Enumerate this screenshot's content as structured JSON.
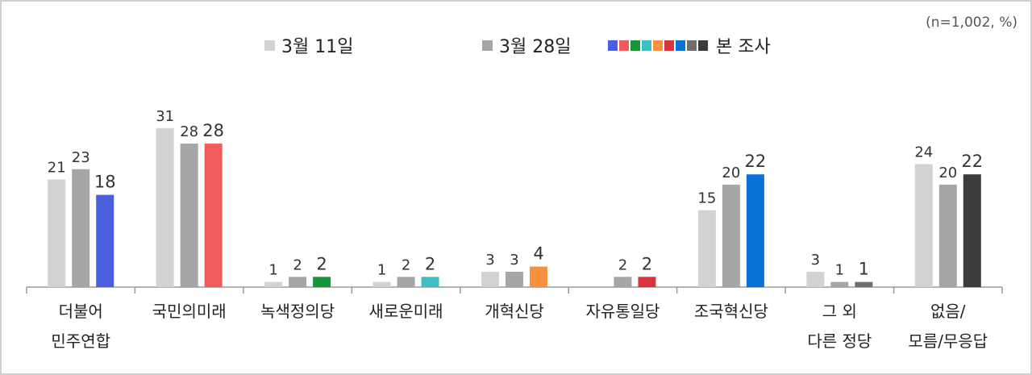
{
  "note": "(n=1,002, %)",
  "legend": {
    "s1": {
      "label": "3월 11일",
      "color": "#d3d3d3"
    },
    "s2": {
      "label": "3월 28일",
      "color": "#a6a6a6"
    },
    "s3": {
      "label": "본 조사",
      "colors": [
        "#4a5fe0",
        "#f25b5b",
        "#16963a",
        "#3fbfc4",
        "#f7903b",
        "#d9343e",
        "#0a72d6",
        "#6f6f6f",
        "#3b3b3b"
      ]
    }
  },
  "chart_data": {
    "type": "bar",
    "categories": [
      [
        "더불어",
        "민주연합"
      ],
      [
        "국민의미래"
      ],
      [
        "녹색정의당"
      ],
      [
        "새로운미래"
      ],
      [
        "개혁신당"
      ],
      [
        "자유통일당"
      ],
      [
        "조국혁신당"
      ],
      [
        "그 외",
        "다른 정당"
      ],
      [
        "없음/",
        "모름/무응답"
      ]
    ],
    "series": [
      {
        "name": "3월 11일",
        "values": [
          21,
          31,
          1,
          1,
          3,
          null,
          15,
          3,
          24
        ]
      },
      {
        "name": "3월 28일",
        "values": [
          23,
          28,
          2,
          2,
          3,
          2,
          20,
          1,
          20
        ]
      },
      {
        "name": "본 조사",
        "values": [
          18,
          28,
          2,
          2,
          4,
          2,
          22,
          1,
          22
        ]
      }
    ],
    "colors": {
      "s1": "#d3d3d3",
      "s2": "#a6a6a6",
      "s3": [
        "#4a5fe0",
        "#f25b5b",
        "#16963a",
        "#3fbfc4",
        "#f7903b",
        "#d9343e",
        "#0a72d6",
        "#6f6f6f",
        "#3b3b3b"
      ]
    },
    "ylim": [
      0,
      34
    ]
  }
}
